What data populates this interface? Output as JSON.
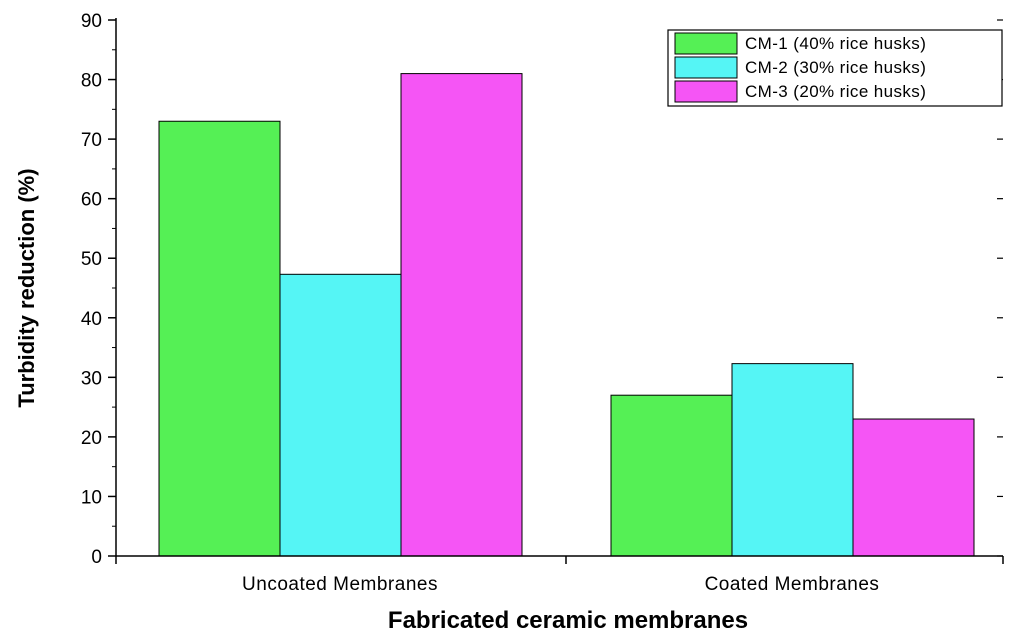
{
  "chart_data": {
    "type": "bar",
    "title": "",
    "xlabel": "Fabricated ceramic membranes",
    "ylabel": "Turbidity reduction (%)",
    "categories": [
      "Uncoated Membranes",
      "Coated Membranes"
    ],
    "series": [
      {
        "name": "CM-1 (40% rice husks)",
        "color": "#55f055",
        "values": [
          73,
          27
        ]
      },
      {
        "name": "CM-2 (30% rice husks)",
        "color": "#55f5f5",
        "values": [
          47.3,
          32.3
        ]
      },
      {
        "name": "CM-3 (20% rice husks)",
        "color": "#f555f5",
        "values": [
          81,
          23
        ]
      }
    ],
    "ylim": [
      0,
      90
    ],
    "yticks": [
      0,
      10,
      20,
      30,
      40,
      50,
      60,
      70,
      80,
      90
    ],
    "grid": false,
    "legend_position": "top-right"
  }
}
